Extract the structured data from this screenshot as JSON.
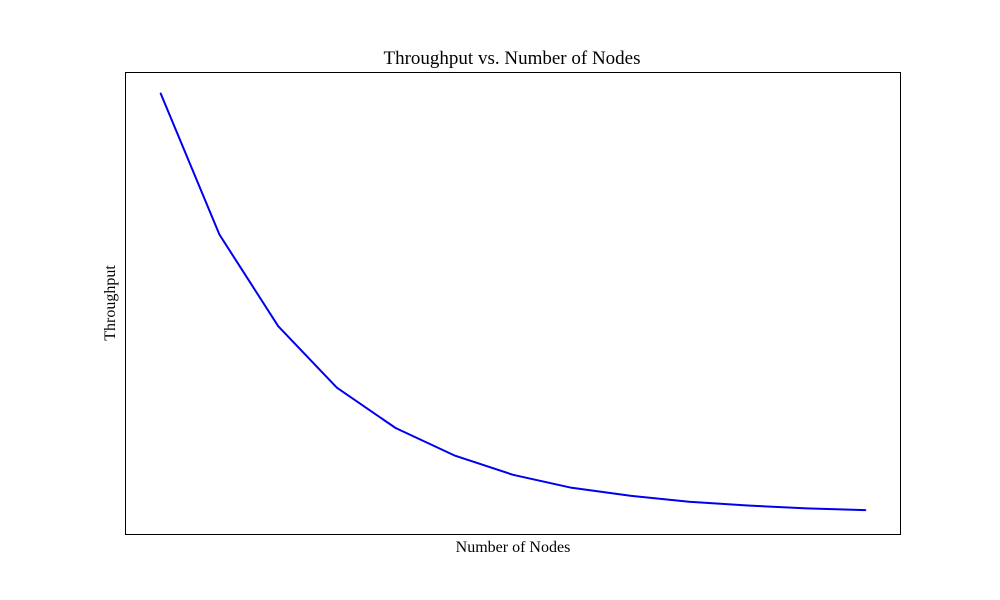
{
  "chart_data": {
    "type": "line",
    "title": "Throughput vs. Number of Nodes",
    "xlabel": "Number of Nodes",
    "ylabel": "Throughput",
    "x_ticks_visible": false,
    "y_ticks_visible": false,
    "grid": false,
    "x": [
      1,
      2,
      3,
      4,
      5,
      6,
      7,
      8,
      9,
      10,
      11,
      12,
      13
    ],
    "series": [
      {
        "color": "#0000ee",
        "values": [
          100,
          66.5,
          44.7,
          30.1,
          20.5,
          14.0,
          9.4,
          6.3,
          4.4,
          3.0,
          2.1,
          1.4,
          1.0
        ]
      }
    ],
    "xlim": [
      0.4,
      13.6
    ],
    "ylim": [
      -4.8,
      105
    ]
  }
}
